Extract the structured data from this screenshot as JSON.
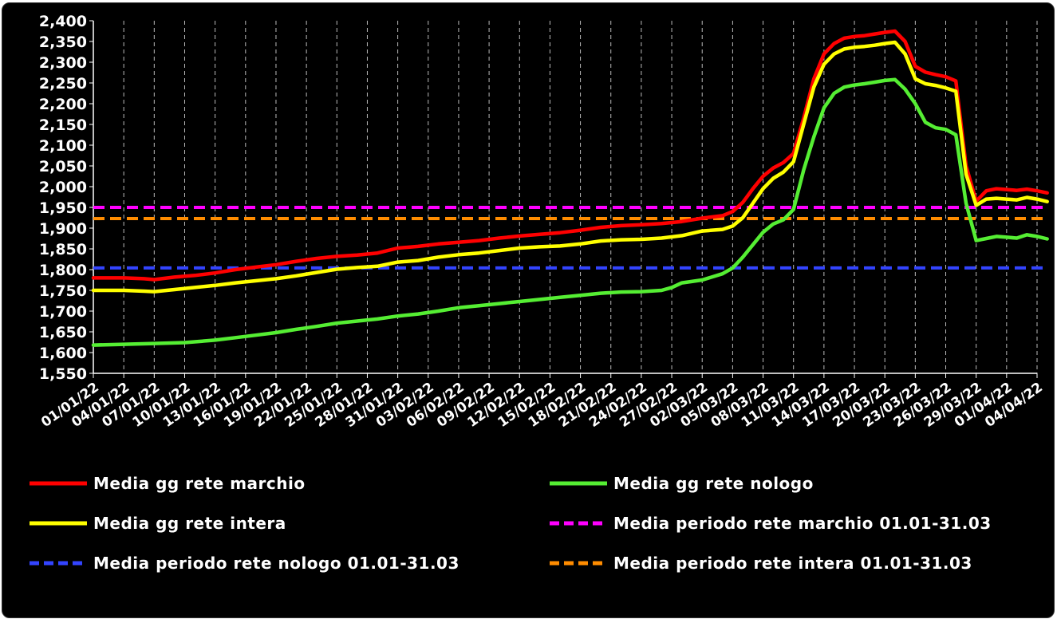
{
  "chart_data": {
    "type": "line",
    "title": "",
    "xlabel": "",
    "ylabel": "",
    "ylim": [
      1550,
      2400
    ],
    "y_ticks": [
      "1,550",
      "1,600",
      "1,650",
      "1,700",
      "1,750",
      "1,800",
      "1,850",
      "1,900",
      "1,950",
      "2,000",
      "2,050",
      "2,100",
      "2,150",
      "2,200",
      "2,250",
      "2,300",
      "2,350",
      "2,400"
    ],
    "x_ticks": [
      "01/01/22",
      "04/01/22",
      "07/01/22",
      "10/01/22",
      "13/01/22",
      "16/01/22",
      "19/01/22",
      "22/01/22",
      "25/01/22",
      "28/01/22",
      "31/01/22",
      "03/02/22",
      "06/02/22",
      "09/02/22",
      "12/02/22",
      "15/02/22",
      "18/02/22",
      "21/02/22",
      "24/02/22",
      "27/02/22",
      "02/03/22",
      "05/03/22",
      "08/03/22",
      "11/03/22",
      "14/03/22",
      "17/03/22",
      "20/03/22",
      "23/03/22",
      "26/03/22",
      "29/03/22",
      "01/04/22",
      "04/04/22"
    ],
    "x_range_days": [
      0,
      93
    ],
    "grid": "vertical-dashed",
    "legend_position": "bottom",
    "series": [
      {
        "name": "Media gg rete marchio",
        "color": "#ff0000",
        "style": "solid",
        "points": [
          [
            0,
            1780
          ],
          [
            3,
            1780
          ],
          [
            5,
            1778
          ],
          [
            6,
            1776
          ],
          [
            8,
            1782
          ],
          [
            10,
            1786
          ],
          [
            12,
            1792
          ],
          [
            14,
            1800
          ],
          [
            16,
            1806
          ],
          [
            18,
            1812
          ],
          [
            20,
            1820
          ],
          [
            22,
            1827
          ],
          [
            24,
            1832
          ],
          [
            26,
            1835
          ],
          [
            28,
            1840
          ],
          [
            30,
            1852
          ],
          [
            32,
            1856
          ],
          [
            34,
            1862
          ],
          [
            36,
            1866
          ],
          [
            38,
            1870
          ],
          [
            40,
            1876
          ],
          [
            42,
            1881
          ],
          [
            44,
            1885
          ],
          [
            46,
            1889
          ],
          [
            48,
            1895
          ],
          [
            50,
            1902
          ],
          [
            52,
            1906
          ],
          [
            54,
            1908
          ],
          [
            56,
            1911
          ],
          [
            58,
            1916
          ],
          [
            60,
            1924
          ],
          [
            62,
            1930
          ],
          [
            63,
            1940
          ],
          [
            64,
            1962
          ],
          [
            65,
            1995
          ],
          [
            66,
            2025
          ],
          [
            67,
            2045
          ],
          [
            68,
            2058
          ],
          [
            69,
            2080
          ],
          [
            70,
            2165
          ],
          [
            71,
            2260
          ],
          [
            72,
            2320
          ],
          [
            73,
            2345
          ],
          [
            74,
            2358
          ],
          [
            75,
            2362
          ],
          [
            76,
            2364
          ],
          [
            77,
            2368
          ],
          [
            78,
            2372
          ],
          [
            79,
            2375
          ],
          [
            80,
            2350
          ],
          [
            81,
            2290
          ],
          [
            82,
            2276
          ],
          [
            83,
            2270
          ],
          [
            84,
            2265
          ],
          [
            85,
            2255
          ],
          [
            86,
            2050
          ],
          [
            87,
            1965
          ],
          [
            88,
            1990
          ],
          [
            89,
            1995
          ],
          [
            90,
            1993
          ],
          [
            91,
            1991
          ],
          [
            92,
            1994
          ],
          [
            93,
            1990
          ],
          [
            94,
            1985
          ]
        ]
      },
      {
        "name": "Media gg rete nologo",
        "color": "#55ee33",
        "style": "solid",
        "points": [
          [
            0,
            1618
          ],
          [
            3,
            1620
          ],
          [
            6,
            1622
          ],
          [
            9,
            1624
          ],
          [
            12,
            1630
          ],
          [
            14,
            1636
          ],
          [
            16,
            1642
          ],
          [
            18,
            1648
          ],
          [
            20,
            1656
          ],
          [
            22,
            1663
          ],
          [
            24,
            1671
          ],
          [
            26,
            1676
          ],
          [
            28,
            1681
          ],
          [
            30,
            1688
          ],
          [
            32,
            1693
          ],
          [
            34,
            1700
          ],
          [
            36,
            1708
          ],
          [
            38,
            1713
          ],
          [
            40,
            1718
          ],
          [
            42,
            1723
          ],
          [
            44,
            1728
          ],
          [
            46,
            1733
          ],
          [
            48,
            1738
          ],
          [
            50,
            1743
          ],
          [
            52,
            1746
          ],
          [
            54,
            1747
          ],
          [
            56,
            1750
          ],
          [
            57,
            1757
          ],
          [
            58,
            1768
          ],
          [
            60,
            1775
          ],
          [
            62,
            1790
          ],
          [
            63,
            1804
          ],
          [
            64,
            1830
          ],
          [
            65,
            1860
          ],
          [
            66,
            1890
          ],
          [
            67,
            1910
          ],
          [
            68,
            1920
          ],
          [
            69,
            1945
          ],
          [
            70,
            2040
          ],
          [
            71,
            2120
          ],
          [
            72,
            2190
          ],
          [
            73,
            2225
          ],
          [
            74,
            2240
          ],
          [
            75,
            2245
          ],
          [
            76,
            2248
          ],
          [
            77,
            2252
          ],
          [
            78,
            2256
          ],
          [
            79,
            2258
          ],
          [
            80,
            2235
          ],
          [
            81,
            2200
          ],
          [
            82,
            2155
          ],
          [
            83,
            2142
          ],
          [
            84,
            2138
          ],
          [
            85,
            2125
          ],
          [
            86,
            1960
          ],
          [
            87,
            1870
          ],
          [
            88,
            1875
          ],
          [
            89,
            1880
          ],
          [
            90,
            1878
          ],
          [
            91,
            1876
          ],
          [
            92,
            1884
          ],
          [
            93,
            1880
          ],
          [
            94,
            1874
          ]
        ]
      },
      {
        "name": "Media gg rete intera",
        "color": "#ffff00",
        "style": "solid",
        "points": [
          [
            0,
            1750
          ],
          [
            3,
            1750
          ],
          [
            5,
            1748
          ],
          [
            6,
            1747
          ],
          [
            8,
            1752
          ],
          [
            10,
            1757
          ],
          [
            12,
            1762
          ],
          [
            14,
            1768
          ],
          [
            16,
            1773
          ],
          [
            18,
            1778
          ],
          [
            20,
            1785
          ],
          [
            22,
            1793
          ],
          [
            24,
            1801
          ],
          [
            26,
            1805
          ],
          [
            28,
            1808
          ],
          [
            30,
            1818
          ],
          [
            32,
            1822
          ],
          [
            34,
            1830
          ],
          [
            36,
            1836
          ],
          [
            38,
            1840
          ],
          [
            40,
            1846
          ],
          [
            42,
            1852
          ],
          [
            44,
            1855
          ],
          [
            46,
            1857
          ],
          [
            48,
            1862
          ],
          [
            50,
            1869
          ],
          [
            52,
            1872
          ],
          [
            54,
            1873
          ],
          [
            56,
            1876
          ],
          [
            58,
            1882
          ],
          [
            60,
            1893
          ],
          [
            62,
            1897
          ],
          [
            63,
            1905
          ],
          [
            64,
            1925
          ],
          [
            65,
            1960
          ],
          [
            66,
            1995
          ],
          [
            67,
            2020
          ],
          [
            68,
            2035
          ],
          [
            69,
            2060
          ],
          [
            70,
            2150
          ],
          [
            71,
            2240
          ],
          [
            72,
            2295
          ],
          [
            73,
            2320
          ],
          [
            74,
            2332
          ],
          [
            75,
            2336
          ],
          [
            76,
            2338
          ],
          [
            77,
            2341
          ],
          [
            78,
            2345
          ],
          [
            79,
            2348
          ],
          [
            80,
            2320
          ],
          [
            81,
            2260
          ],
          [
            82,
            2248
          ],
          [
            83,
            2244
          ],
          [
            84,
            2238
          ],
          [
            85,
            2230
          ],
          [
            86,
            2030
          ],
          [
            87,
            1955
          ],
          [
            88,
            1970
          ],
          [
            89,
            1972
          ],
          [
            90,
            1970
          ],
          [
            91,
            1968
          ],
          [
            92,
            1974
          ],
          [
            93,
            1970
          ],
          [
            94,
            1964
          ]
        ]
      },
      {
        "name": "Media periodo rete marchio 01.01-31.03",
        "color": "#ff00ff",
        "style": "dashed",
        "value": 1950,
        "x_span": [
          0,
          94
        ]
      },
      {
        "name": "Media periodo rete nologo 01.01-31.03",
        "color": "#3344ff",
        "style": "dashed",
        "value": 1804,
        "x_span": [
          0,
          94
        ]
      },
      {
        "name": "Media periodo rete intera 01.01-31.03",
        "color": "#ff8c00",
        "style": "dashed",
        "value": 1923,
        "x_span": [
          0,
          94
        ]
      }
    ]
  }
}
